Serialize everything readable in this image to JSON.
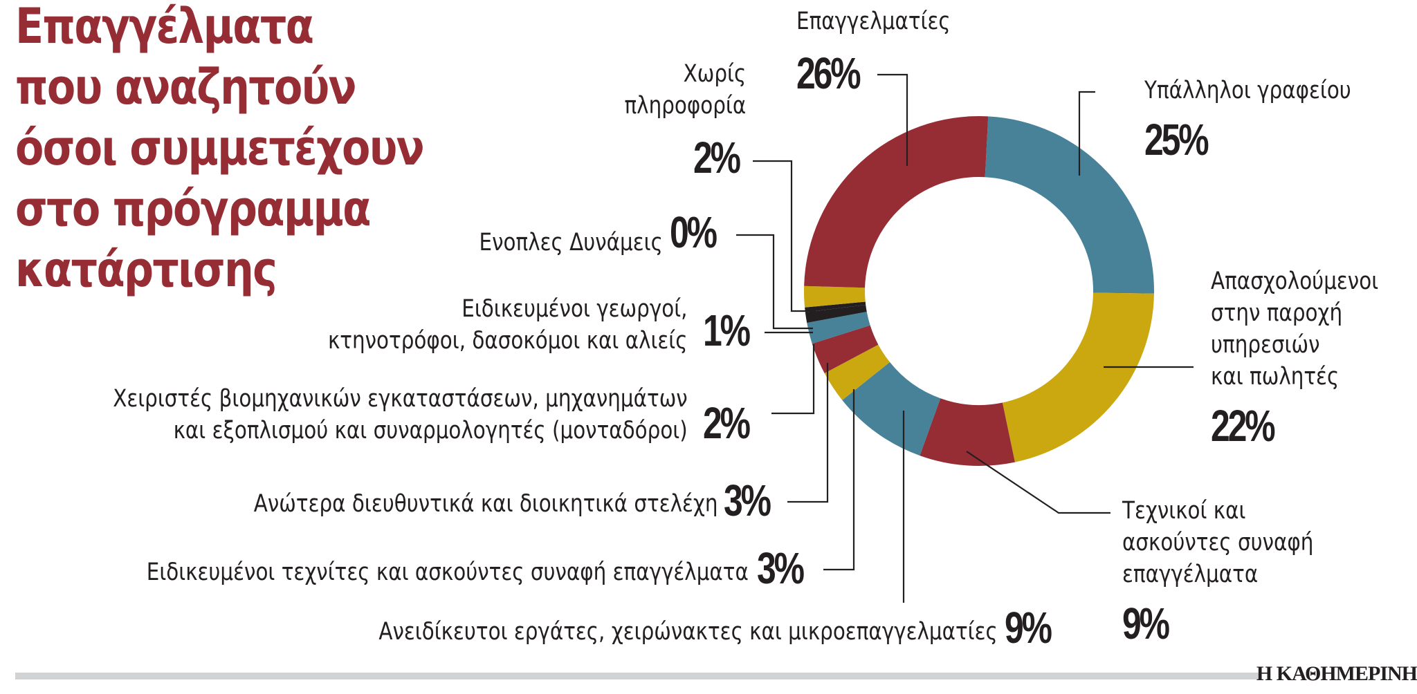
{
  "title": {
    "lines": [
      "Επαγγέλματα",
      "που αναζητούν",
      "όσοι συμμετέχουν",
      "στο πρόγραμμα",
      "κατάρτισης"
    ]
  },
  "colors": {
    "red": "#962d35",
    "blue": "#478299",
    "gold": "#cba80f",
    "black": "#231f20",
    "title": "#962d35",
    "footer_bar": "#d1d2d4"
  },
  "labels": {
    "epaggelmaties": {
      "text": "Επαγγελματίες",
      "pct": "26%"
    },
    "ypalliloi": {
      "text": "Υπάλληλοι γραφείου",
      "pct": "25%"
    },
    "apasxoloumenoi": {
      "lines": [
        "Απασχολούμενοι",
        "στην παροχή",
        "υπηρεσιών",
        "και πωλητές"
      ],
      "pct": "22%"
    },
    "texnikoi": {
      "lines": [
        "Τεχνικοί και",
        "ασκούντες συναφή",
        "επαγγέλματα"
      ],
      "pct": "9%"
    },
    "aneidikeutoi": {
      "text": "Ανειδίκευτοι εργάτες, χειρώνακτες και μικροεπαγγελματίες",
      "pct": "9%"
    },
    "texnites": {
      "text": "Ειδικευμένοι τεχνίτες και ασκούντες συναφή επαγγέλματα",
      "pct": "3%"
    },
    "anotera": {
      "text": "Ανώτερα διευθυντικά και διοικητικά στελέχη",
      "pct": "3%"
    },
    "xeiristes": {
      "lines": [
        "Χειριστές βιομηχανικών εγκαταστάσεων, μηχανημάτων",
        "και εξοπλισμού και συναρμολογητές (μονταδόροι)"
      ],
      "pct": "2%"
    },
    "georgoi": {
      "lines": [
        "Ειδικευμένοι γεωργοί,",
        "κτηνοτρόφοι, δασοκόμοι και αλιείς"
      ],
      "pct": "1%"
    },
    "enoples": {
      "text": "Ενοπλες Δυνάμεις",
      "pct": "0%"
    },
    "xoris": {
      "lines": [
        "Χωρίς",
        "πληροφορία"
      ],
      "pct": "2%"
    }
  },
  "footer": {
    "brand": "Η ΚΑΘΗΜΕΡΙΝΗ"
  },
  "chart_data": {
    "type": "pie",
    "variant": "donut",
    "title": "Επαγγέλματα που αναζητούν όσοι συμμετέχουν στο πρόγραμμα κατάρτισης",
    "unit": "%",
    "categories": [
      "Υπάλληλοι γραφείου",
      "Απασχολούμενοι στην παροχή υπηρεσιών και πωλητές",
      "Τεχνικοί και ασκούντες συναφή επαγγέλματα",
      "Ανειδίκευτοι εργάτες, χειρώνακτες και μικροεπαγγελματίες",
      "Ειδικευμένοι τεχνίτες και ασκούντες συναφή επαγγέλματα",
      "Ανώτερα διευθυντικά και διοικητικά στελέχη",
      "Χειριστές βιομηχανικών εγκαταστάσεων, μηχανημάτων και εξοπλισμού και συναρμολογητές (μονταδόροι)",
      "Ειδικευμένοι γεωργοί, κτηνοτρόφοι, δασοκόμοι και αλιείς",
      "Ενοπλες Δυνάμεις",
      "Χωρίς πληροφορία",
      "Επαγγελματίες"
    ],
    "values": [
      25,
      22,
      9,
      9,
      3,
      3,
      2,
      1,
      0,
      2,
      26
    ],
    "slice_colors": [
      "#478299",
      "#cba80f",
      "#962d35",
      "#478299",
      "#cba80f",
      "#962d35",
      "#478299",
      "#231f20",
      "#231f20",
      "#cba80f",
      "#962d35"
    ],
    "start_angle_deg": 3,
    "direction": "clockwise",
    "legend": "none (leader-line labels)",
    "source": "Η ΚΑΘΗΜΕΡΙΝΗ"
  }
}
